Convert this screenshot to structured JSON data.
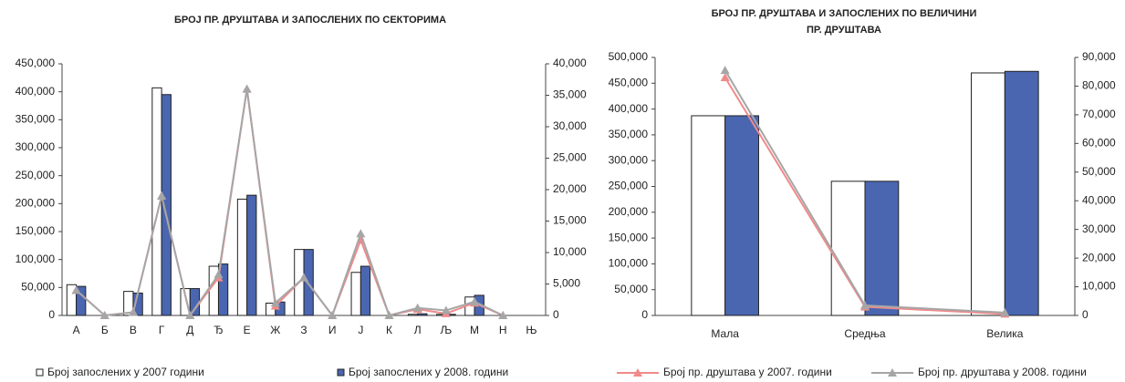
{
  "chart_data": [
    {
      "type": "bar_line",
      "title": [
        "БРОЈ ПР. ДРУШТАВА И ЗАПОСЛЕНИХ ПО СЕКТОРИМА"
      ],
      "categories": [
        "А",
        "Б",
        "В",
        "Г",
        "Д",
        "Ђ",
        "Е",
        "Ж",
        "З",
        "И",
        "Ј",
        "К",
        "Л",
        "Љ",
        "М",
        "Н",
        "Њ"
      ],
      "series": [
        {
          "name": "Број запослених у 2007 години",
          "kind": "bar",
          "color": "#ffffff",
          "values": [
            55000,
            0,
            43000,
            407000,
            48000,
            88000,
            208000,
            22000,
            118000,
            0,
            77000,
            0,
            2000,
            2000,
            33000,
            0,
            0
          ]
        },
        {
          "name": "Број запослених у 2008. години",
          "kind": "bar",
          "color": "#4a66b0",
          "values": [
            52000,
            0,
            40000,
            395000,
            48000,
            92000,
            215000,
            24000,
            118000,
            0,
            88000,
            0,
            3000,
            2000,
            36000,
            0,
            0
          ]
        },
        {
          "kind": "line",
          "axis": "y2",
          "color": "#f08a8a",
          "values": [
            4000,
            0,
            500,
            19000,
            0,
            6000,
            36000,
            1500,
            6000,
            0,
            12000,
            0,
            1000,
            300,
            2000,
            0,
            null
          ]
        },
        {
          "kind": "line",
          "axis": "y2",
          "color": "#a6a6a6",
          "values": [
            4000,
            0,
            500,
            19000,
            0,
            6500,
            36000,
            2000,
            6000,
            0,
            13000,
            0,
            1200,
            800,
            2200,
            0,
            null
          ]
        }
      ],
      "ylim": [
        0,
        450000
      ],
      "yticks": [
        0,
        {
          "value": 50000,
          "label": "50,000"
        },
        {
          "value": 100000,
          "label": "100,000"
        },
        {
          "value": 150000,
          "label": "150,000"
        },
        {
          "value": 200000,
          "label": "200,000"
        },
        {
          "value": 250000,
          "label": "250,000"
        },
        {
          "value": 300000,
          "label": "300,000"
        },
        {
          "value": 350000,
          "label": "350,000"
        },
        {
          "value": 400000,
          "label": "400,000"
        },
        {
          "value": 450000,
          "label": "450,000"
        }
      ],
      "y2lim": [
        0,
        40000
      ],
      "y2ticks": [
        0,
        {
          "value": 5000,
          "label": "5,000"
        },
        {
          "value": 10000,
          "label": "10,000"
        },
        {
          "value": 15000,
          "label": "15,000"
        },
        {
          "value": 20000,
          "label": "20,000"
        },
        {
          "value": 25000,
          "label": "25,000"
        },
        {
          "value": 30000,
          "label": "30,000"
        },
        {
          "value": 35000,
          "label": "35,000"
        },
        {
          "value": 40000,
          "label": "40,000"
        }
      ]
    },
    {
      "type": "bar_line",
      "title": [
        "БРОЈ ПР. ДРУШТАВА И ЗАПОСЛЕНИХ ПО ВЕЛИЧИНИ",
        "ПР. ДРУШТАВА"
      ],
      "categories": [
        "Мала",
        "Средња",
        "Велика"
      ],
      "series": [
        {
          "kind": "bar",
          "color": "#ffffff",
          "values": [
            387000,
            260000,
            470000
          ]
        },
        {
          "kind": "bar",
          "color": "#4a66b0",
          "values": [
            387000,
            260000,
            473000
          ]
        },
        {
          "name": "Број пр. друштава у 2007. години",
          "kind": "line",
          "axis": "y2",
          "color": "#f08a8a",
          "values": [
            83000,
            3000,
            500
          ]
        },
        {
          "name": "Број пр. друштава у 2008. години",
          "kind": "line",
          "axis": "y2",
          "color": "#a6a6a6",
          "values": [
            85500,
            3500,
            1000
          ]
        }
      ],
      "ylim": [
        0,
        500000
      ],
      "yticks": [
        0,
        {
          "value": 50000,
          "label": "50,000"
        },
        {
          "value": 100000,
          "label": "100,000"
        },
        {
          "value": 150000,
          "label": "150,000"
        },
        {
          "value": 200000,
          "label": "200,000"
        },
        {
          "value": 250000,
          "label": "250,000"
        },
        {
          "value": 300000,
          "label": "300,000"
        },
        {
          "value": 350000,
          "label": "350,000"
        },
        {
          "value": 400000,
          "label": "400,000"
        },
        {
          "value": 450000,
          "label": "450,000"
        },
        {
          "value": 500000,
          "label": "500,000"
        }
      ],
      "y2lim": [
        0,
        90000
      ],
      "y2ticks": [
        0,
        {
          "value": 10000,
          "label": "10,000"
        },
        {
          "value": 20000,
          "label": "20,000"
        },
        {
          "value": 30000,
          "label": "30,000"
        },
        {
          "value": 40000,
          "label": "40,000"
        },
        {
          "value": 50000,
          "label": "50,000"
        },
        {
          "value": 60000,
          "label": "60,000"
        },
        {
          "value": 70000,
          "label": "70,000"
        },
        {
          "value": 80000,
          "label": "80,000"
        },
        {
          "value": 90000,
          "label": "90,000"
        }
      ]
    }
  ]
}
